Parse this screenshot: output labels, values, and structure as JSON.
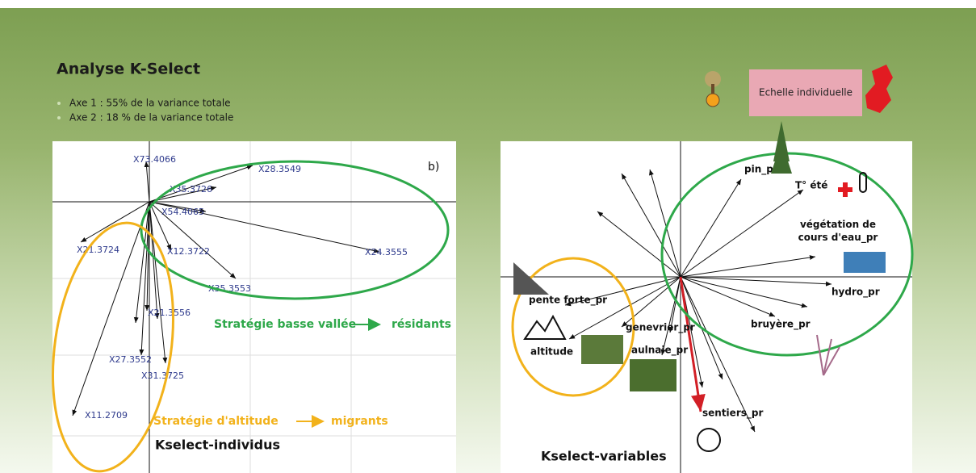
{
  "header": {
    "title": "Analyse K-Select",
    "bullets": [
      "Axe 1 :  55% de la variance totale",
      "Axe 2 :  18 % de la variance totale"
    ],
    "scale_box": "Echelle individuelle"
  },
  "left_panel": {
    "panel_label": "b)",
    "caption": "Kselect-individus",
    "vectors": [
      "X73.4066",
      "X28.3549",
      "X35.3726",
      "X54.4065",
      "X21.3724",
      "X12.3722",
      "X24.3555",
      "X35.3553",
      "X21.3556",
      "X27.3552",
      "X31.3725",
      "X11.2709"
    ],
    "strategies": [
      {
        "label": "Stratégie basse vallée",
        "outcome": "résidants"
      },
      {
        "label": "Stratégie d'altitude",
        "outcome": "migrants"
      }
    ]
  },
  "right_panel": {
    "caption": "Kselect-variables",
    "variables": [
      "pin_pr",
      "T° été",
      "végétation de cours d'eau_pr",
      "hydro_pr",
      "bruyère_pr",
      "pente forte_pr",
      "genevrier_pr",
      "altitude",
      "aulnaie_pr",
      "sentiers_pr"
    ]
  }
}
